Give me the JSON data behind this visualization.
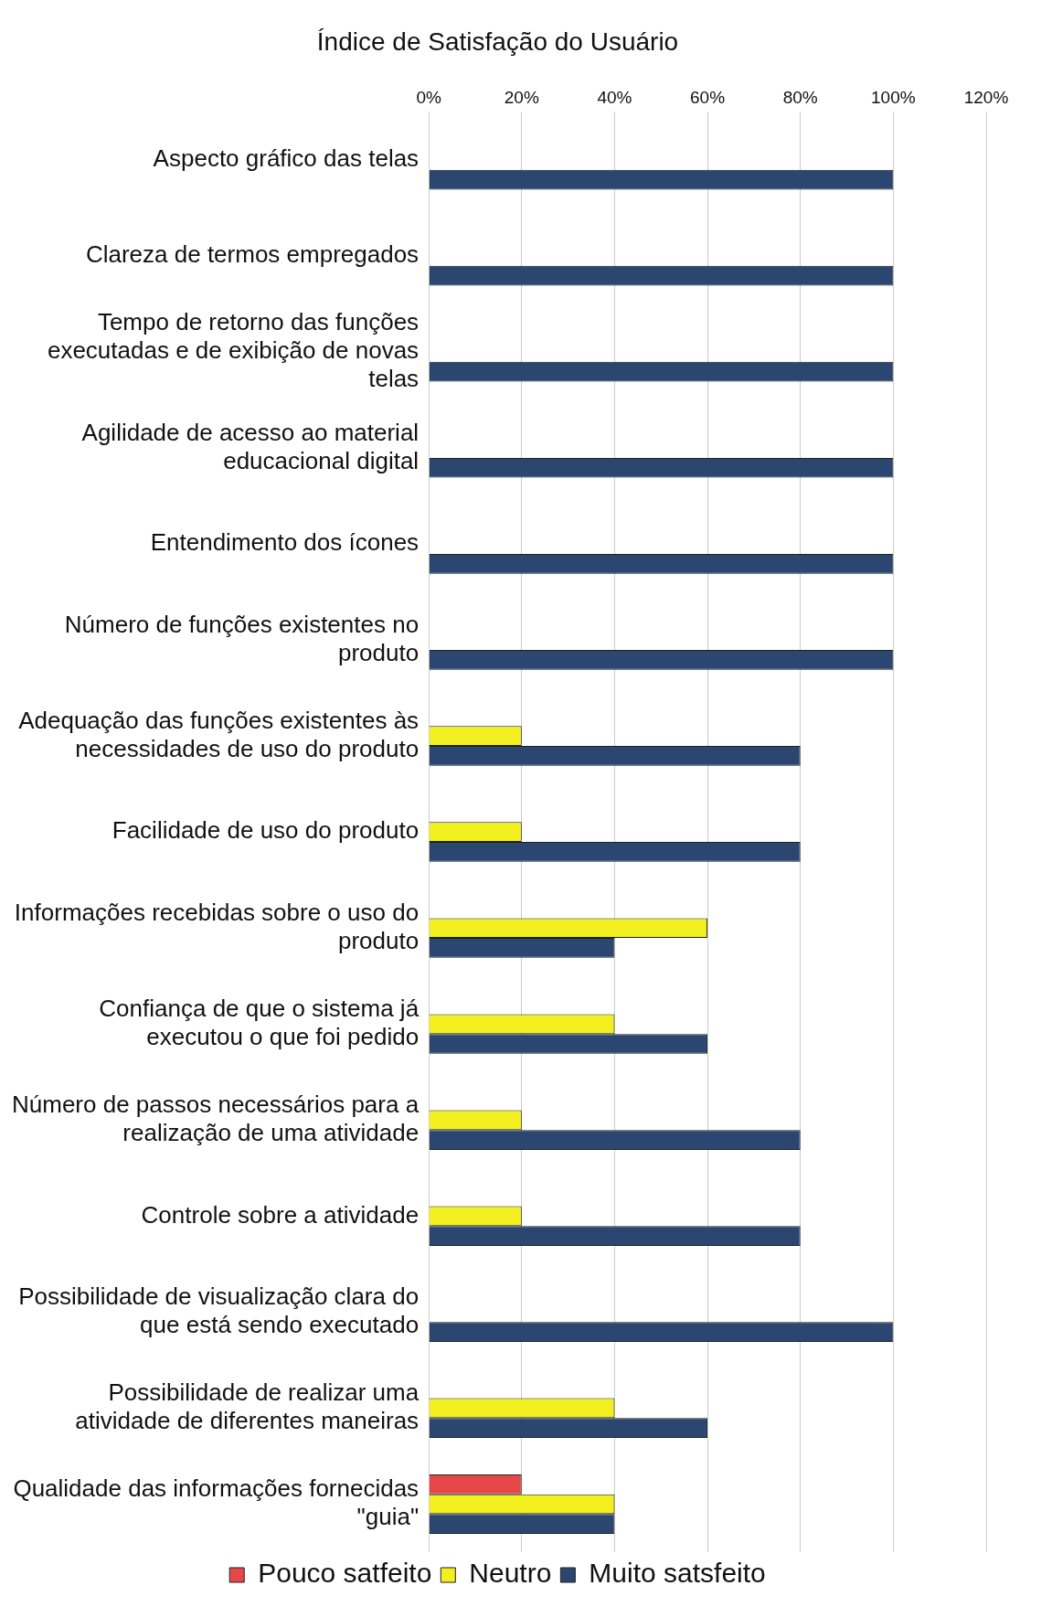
{
  "chart_data": {
    "type": "bar",
    "orientation": "horizontal",
    "title": "Índice de Satisfação do Usuário",
    "categories": [
      "Aspecto gráfico das telas",
      "Clareza de termos empregados",
      "Tempo de retorno das funções executadas e de exibição de novas telas",
      "Agilidade de acesso ao material educacional digital",
      "Entendimento dos ícones",
      "Número de funções existentes no produto",
      "Adequação das funções existentes às necessidades de uso do produto",
      "Facilidade de uso do produto",
      "Informações recebidas sobre o uso do produto",
      "Confiança de que o sistema já executou o que foi pedido",
      "Número de passos necessários para a realização de uma atividade",
      "Controle sobre a atividade",
      "Possibilidade de visualização clara do que está sendo executado",
      "Possibilidade de realizar uma atividade de diferentes maneiras",
      "Qualidade das informações fornecidas \"guia\""
    ],
    "series": [
      {
        "name": "Pouco satfeito",
        "color": "#e8474a",
        "values": [
          null,
          null,
          null,
          null,
          null,
          null,
          null,
          null,
          null,
          null,
          null,
          null,
          null,
          null,
          20
        ]
      },
      {
        "name": "Neutro",
        "color": "#f2f01e",
        "values": [
          null,
          null,
          null,
          null,
          null,
          null,
          20,
          20,
          60,
          40,
          20,
          20,
          null,
          40,
          40
        ]
      },
      {
        "name": "Muito satsfeito",
        "color": "#2b4670",
        "values": [
          100,
          100,
          100,
          100,
          100,
          100,
          80,
          80,
          40,
          60,
          80,
          80,
          100,
          60,
          40
        ]
      }
    ],
    "xlim": [
      0,
      120
    ],
    "xticks": [
      {
        "value": 0,
        "label": "0%"
      },
      {
        "value": 20,
        "label": "20%"
      },
      {
        "value": 40,
        "label": "40%"
      },
      {
        "value": 60,
        "label": "60%"
      },
      {
        "value": 80,
        "label": "80%"
      },
      {
        "value": 100,
        "label": "100%"
      },
      {
        "value": 120,
        "label": "120%"
      }
    ],
    "grid": "x",
    "legend": "bottom"
  }
}
